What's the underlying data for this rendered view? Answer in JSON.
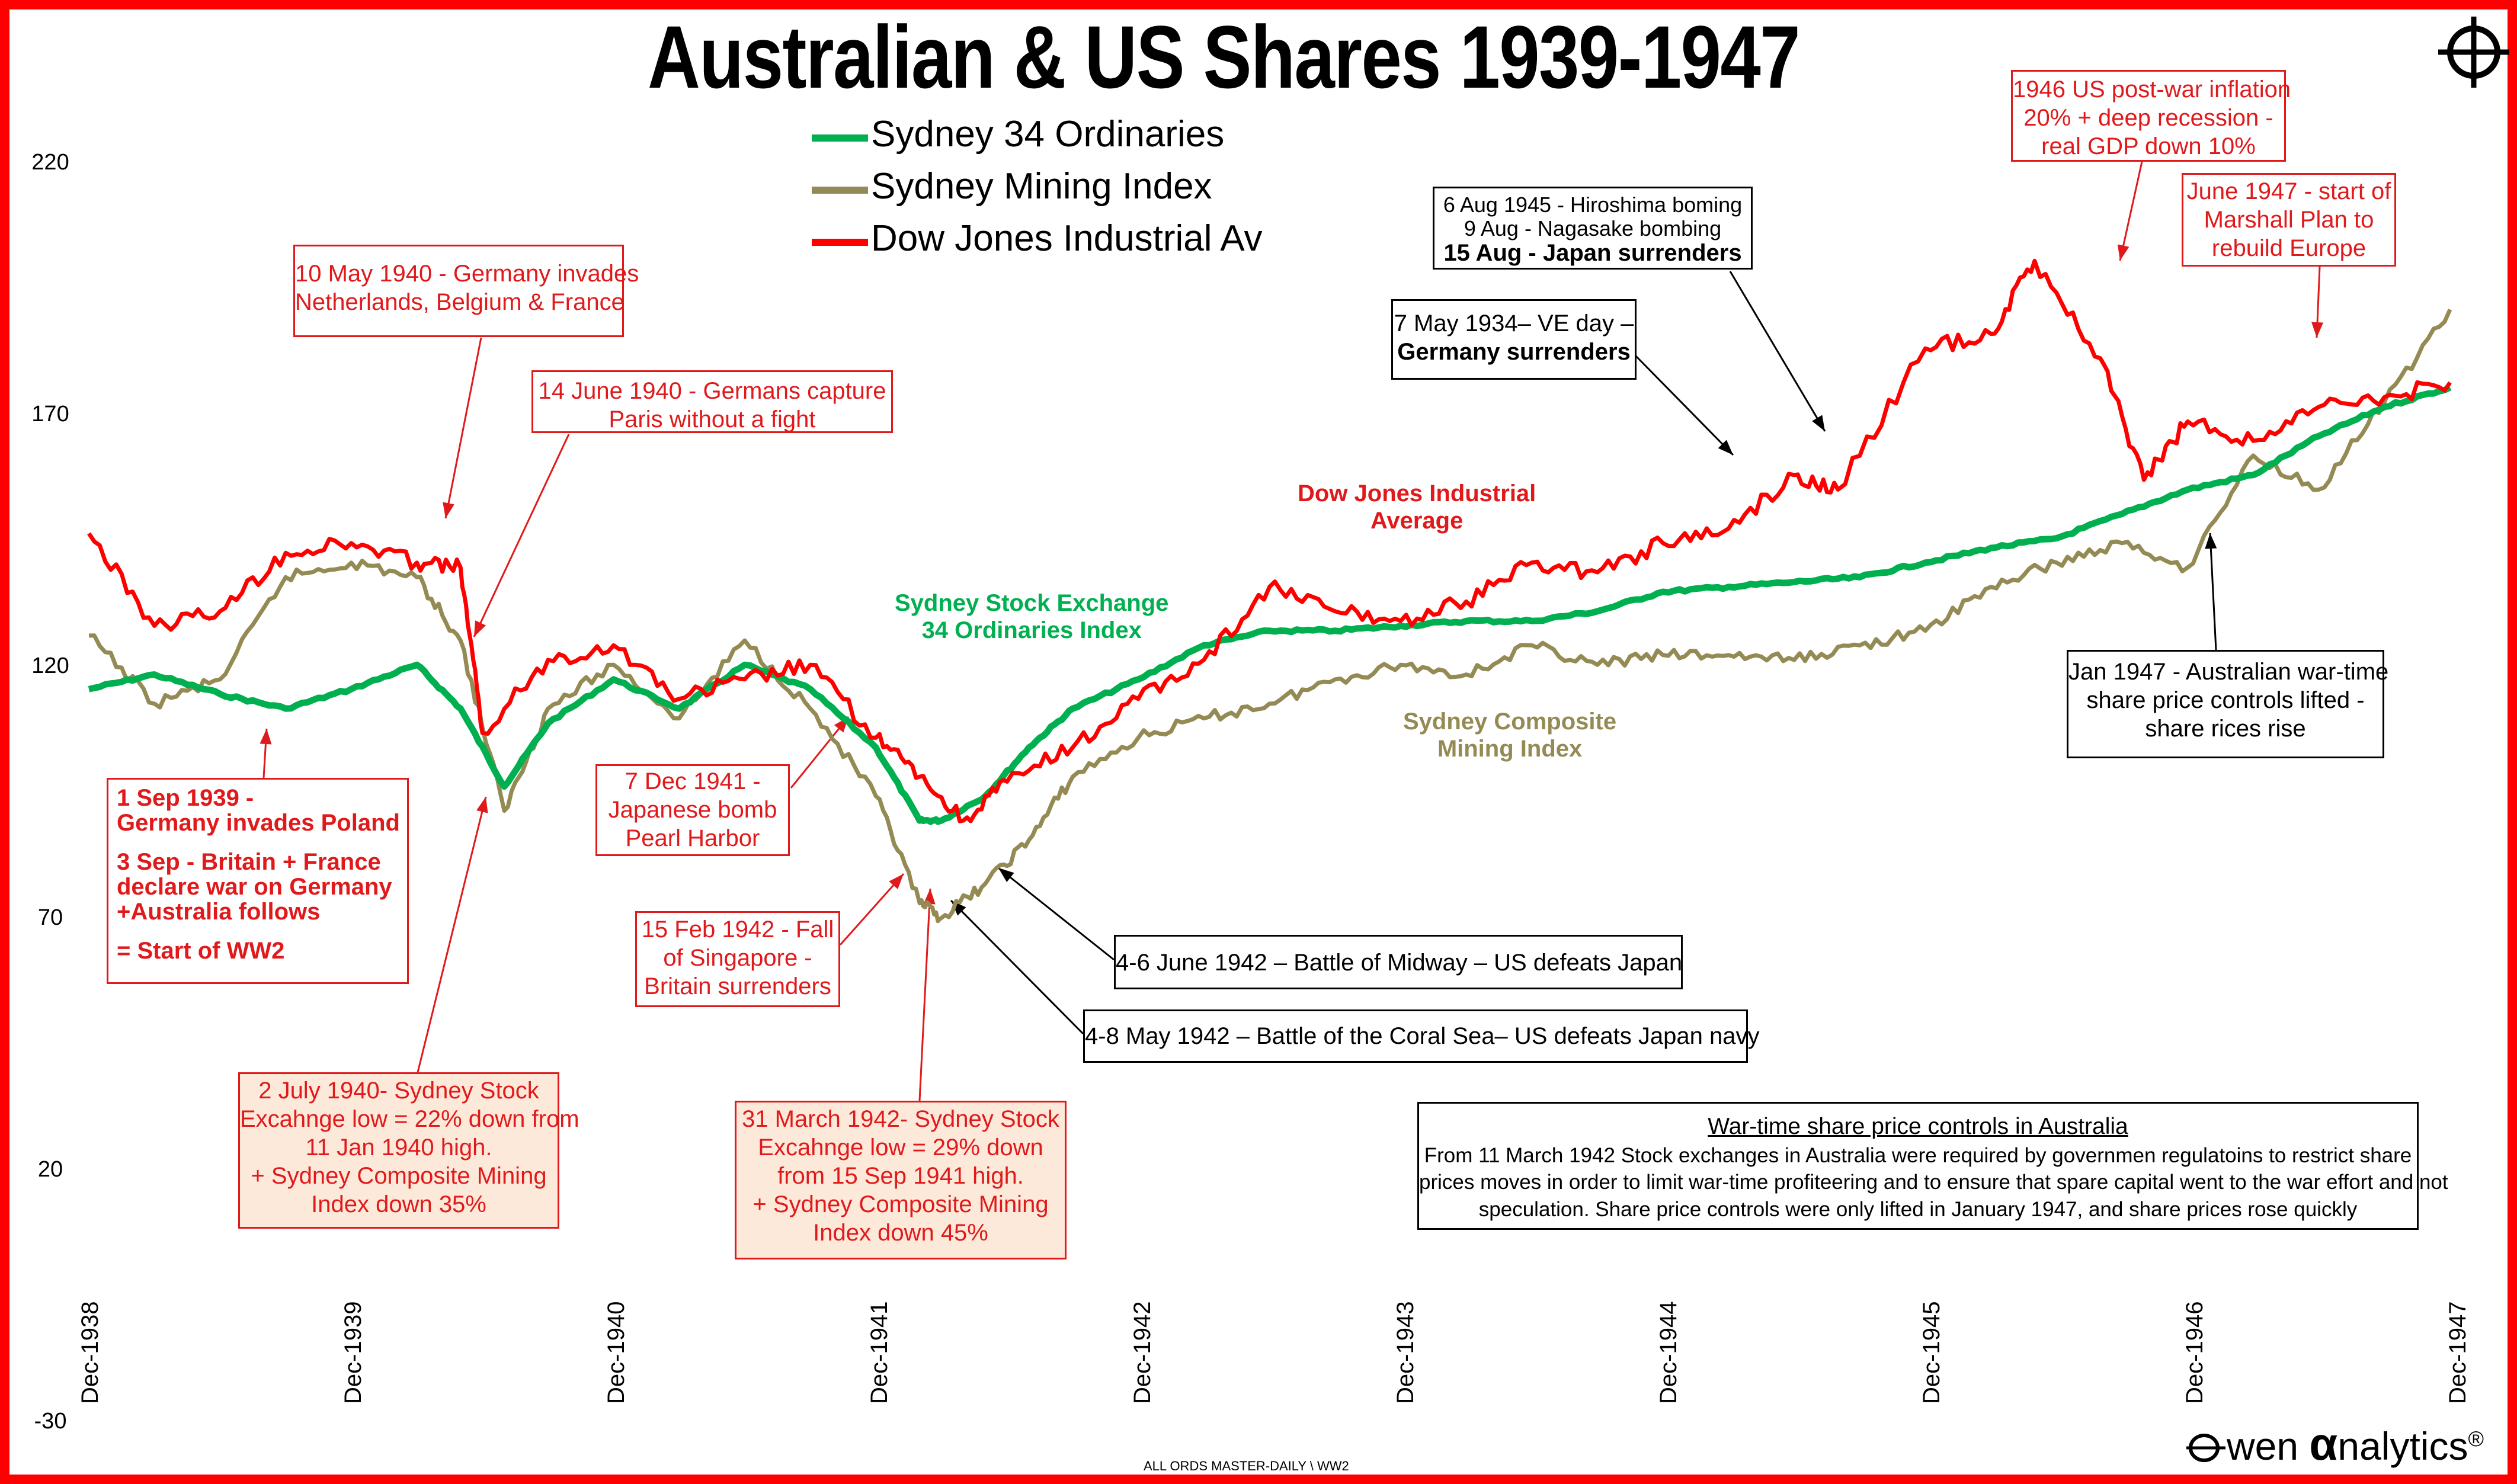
{
  "title": "Australian & US Shares 1939-1947",
  "legend": [
    {
      "label": "Sydney 34 Ordinaries",
      "color": "#00b050"
    },
    {
      "label": "Sydney Mining Index",
      "color": "#948a54"
    },
    {
      "label": "Dow Jones Industrial Av",
      "color": "#ff0000"
    }
  ],
  "colors": {
    "frame": "#ff0000",
    "annotation_red": "#e0191b",
    "annotation_shade": "#fde9d9"
  },
  "icons": {
    "logo_mark": "crosshair-icon",
    "brand_mark": "owen-o-icon"
  },
  "chart_data": {
    "type": "line",
    "title": "Australian & US Shares 1939-1947",
    "xlabel": "",
    "ylabel": "",
    "ylim": [
      -30,
      230
    ],
    "yticks": [
      "220",
      "170",
      "120",
      "70",
      "20",
      "-30"
    ],
    "x_ticks": [
      "Dec-1938",
      "Dec-1939",
      "Dec-1940",
      "Dec-1941",
      "Dec-1942",
      "Dec-1943",
      "Dec-1944",
      "Dec-1945",
      "Dec-1946",
      "Dec-1947"
    ],
    "x_unit": "date (month)",
    "grid": false,
    "legend_position": "top-center",
    "series": [
      {
        "name": "Sydney 34 Ordinaries",
        "color": "#00b050",
        "x": [
          "1938-12",
          "1939-03",
          "1939-06",
          "1939-09",
          "1939-12",
          "1940-03",
          "1940-05",
          "1940-07",
          "1940-09",
          "1940-12",
          "1941-03",
          "1941-06",
          "1941-09",
          "1941-12",
          "1942-02",
          "1942-03",
          "1942-05",
          "1942-07",
          "1942-09",
          "1942-12",
          "1943-03",
          "1943-06",
          "1943-09",
          "1943-12",
          "1944-03",
          "1944-06",
          "1944-09",
          "1944-12",
          "1945-03",
          "1945-06",
          "1945-09",
          "1945-12",
          "1946-03",
          "1946-06",
          "1946-09",
          "1946-12",
          "1947-03",
          "1947-06",
          "1947-09",
          "1947-12"
        ],
        "y": [
          122,
          125,
          121,
          118,
          122,
          127,
          118,
          102,
          115,
          124,
          118,
          127,
          122,
          110,
          95,
          95,
          100,
          110,
          118,
          124,
          131,
          134,
          134,
          135,
          136,
          136,
          138,
          142,
          143,
          144,
          145,
          148,
          151,
          153,
          158,
          163,
          166,
          174,
          180,
          184
        ]
      },
      {
        "name": "Sydney Mining Index",
        "color": "#948a54",
        "x": [
          "1938-12",
          "1939-03",
          "1939-06",
          "1939-09",
          "1939-12",
          "1940-03",
          "1940-05",
          "1940-07",
          "1940-09",
          "1940-12",
          "1941-03",
          "1941-06",
          "1941-09",
          "1941-12",
          "1942-02",
          "1942-03",
          "1942-05",
          "1942-07",
          "1942-09",
          "1942-12",
          "1943-03",
          "1943-06",
          "1943-09",
          "1943-12",
          "1944-03",
          "1944-06",
          "1944-09",
          "1944-12",
          "1945-03",
          "1945-06",
          "1945-09",
          "1945-12",
          "1946-03",
          "1946-06",
          "1946-09",
          "1946-12",
          "1947-03",
          "1947-06",
          "1947-09",
          "1947-12"
        ],
        "y": [
          133,
          119,
          124,
          145,
          148,
          145,
          132,
          97,
          118,
          127,
          116,
          132,
          118,
          100,
          78,
          75,
          82,
          91,
          104,
          112,
          116,
          119,
          124,
          127,
          125,
          131,
          127,
          129,
          129,
          128,
          131,
          134,
          143,
          148,
          152,
          147,
          170,
          163,
          181,
          200
        ]
      },
      {
        "name": "Dow Jones Industrial Av",
        "color": "#ff0000",
        "x": [
          "1938-12",
          "1939-03",
          "1939-06",
          "1939-09",
          "1939-12",
          "1940-03",
          "1940-05",
          "1940-06",
          "1940-09",
          "1940-12",
          "1941-03",
          "1941-06",
          "1941-09",
          "1941-12",
          "1942-02",
          "1942-04",
          "1942-06",
          "1942-09",
          "1942-12",
          "1943-03",
          "1943-06",
          "1943-09",
          "1943-12",
          "1944-03",
          "1944-06",
          "1944-09",
          "1944-12",
          "1945-03",
          "1945-06",
          "1945-08",
          "1945-12",
          "1946-03",
          "1946-05",
          "1946-08",
          "1946-10",
          "1946-12",
          "1947-03",
          "1947-06",
          "1947-09",
          "1947-12"
        ],
        "y": [
          154,
          135,
          138,
          150,
          152,
          148,
          147,
          113,
          128,
          131,
          120,
          124,
          127,
          112,
          104,
          95,
          103,
          110,
          120,
          128,
          143,
          138,
          136,
          140,
          148,
          146,
          152,
          155,
          166,
          163,
          192,
          195,
          210,
          190,
          165,
          177,
          173,
          180,
          182,
          185
        ]
      }
    ],
    "annotations": [
      "Dow Jones Industrial Average",
      "Sydney Stock Exchange 34 Ordinaries Index",
      "Sydney Composite Mining Index"
    ]
  },
  "callouts": {
    "germany_invades": [
      "10 May 1940 - Germany invades",
      "Netherlands, Belgium & France"
    ],
    "paris": [
      "14 June 1940 - Germans capture",
      "Paris without a fight"
    ],
    "poland": [
      "1 Sep 1939 -",
      "Germany invades Poland",
      "3 Sep - Britain + France",
      "declare war on Germany",
      "+Australia follows",
      "= Start of WW2"
    ],
    "sydney_low_1940": [
      "2 July 1940- Sydney Stock",
      "Excahnge low = 22% down from",
      "11 Jan 1940 high.",
      "+ Sydney Composite Mining",
      "Index down 35%"
    ],
    "pearl_harbor": [
      "7 Dec 1941 -",
      "Japanese bomb",
      "Pearl Harbor"
    ],
    "singapore": [
      "15 Feb 1942 - Fall",
      "of Singapore -",
      "Britain surrenders"
    ],
    "sydney_low_1942": [
      "31 March 1942- Sydney Stock",
      "Excahnge low = 29% down",
      "from 15 Sep 1941 high.",
      "+ Sydney Composite Mining",
      "Index down 45%"
    ],
    "midway": [
      "4-6 June 1942 – Battle of Midway – US defeats Japan"
    ],
    "coral_sea": [
      "4-8 May 1942 – Battle of the Coral Sea– US defeats Japan  navy"
    ],
    "ve_day": [
      "7 May 1934– VE day –",
      "Germany surrenders"
    ],
    "hiroshima": [
      "6 Aug 1945 - Hiroshima boming",
      "9 Aug - Nagasake bombing",
      "15 Aug - Japan surrenders"
    ],
    "us_inflation": [
      "1946 US post-war inflation",
      "20% + deep recession -",
      "real GDP down 10%"
    ],
    "marshall": [
      "June 1947 - start of",
      "Marshall Plan to",
      "rebuild Europe"
    ],
    "jan_1947": [
      "Jan 1947 - Australian war-time",
      "share price controls lifted -",
      "share rices rise"
    ],
    "controls": {
      "heading": "War-time share price controls in Australia",
      "lines": [
        "From 11 March 1942 Stock exchanges in Australia were required by governmen regulatoins to restrict share",
        "prices moves in order to limit war-time profiteering and to ensure that spare capital went to the war effort and not",
        "speculation. Share price controls were only lifted in January 1947, and share prices rose quickly"
      ]
    }
  },
  "series_labels": {
    "dow": [
      "Dow Jones Industrial",
      "Average"
    ],
    "syd34": [
      "Sydney Stock Exchange",
      "34 Ordinaries Index"
    ],
    "mining": [
      "Sydney Composite",
      "Mining Index"
    ]
  },
  "brand": {
    "prefix": "wen ",
    "alpha": "α",
    "suffix": "nalytics",
    "reg": "®"
  },
  "footer": "ALL ORDS MASTER-DAILY \\ WW2"
}
